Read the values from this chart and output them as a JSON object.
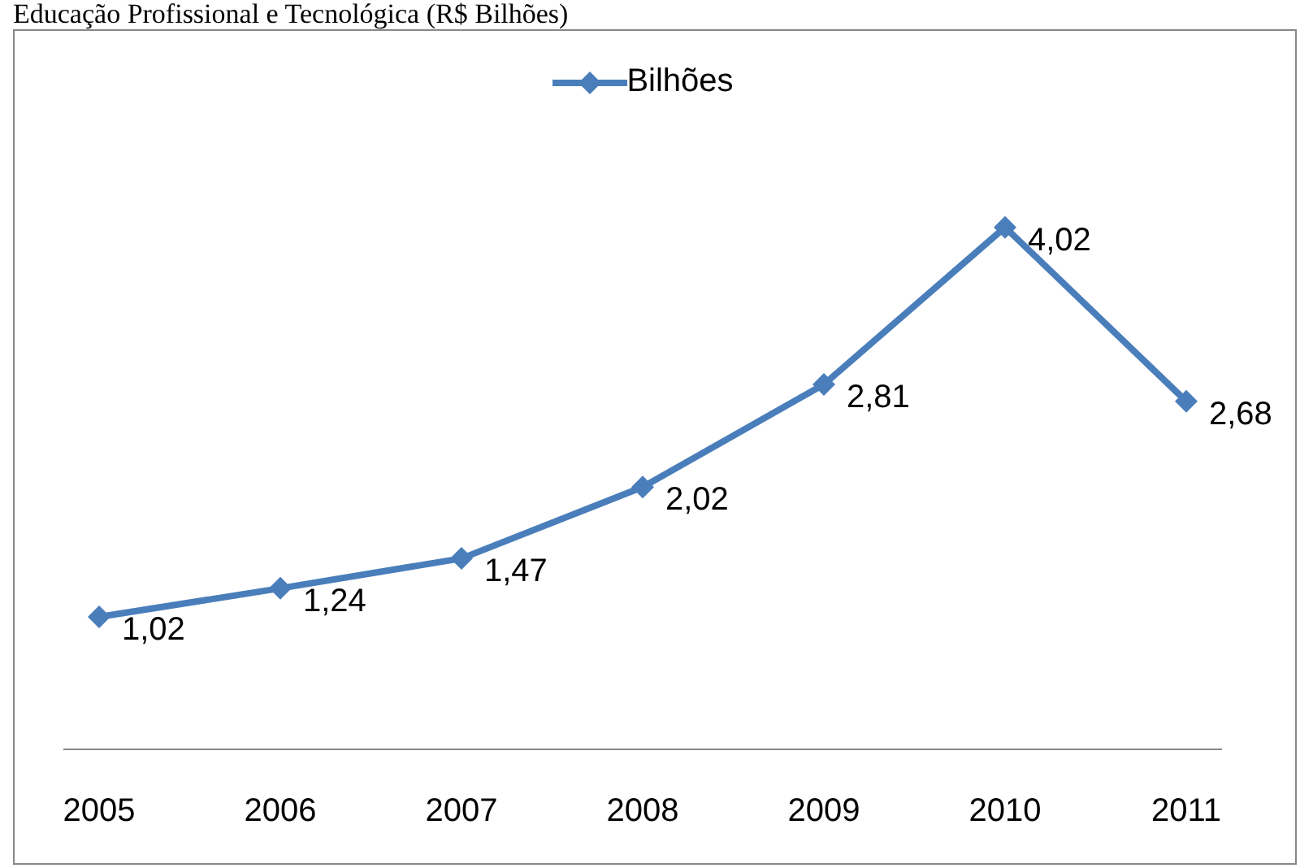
{
  "chart_data": {
    "type": "line",
    "title": "Educação Profissional e Tecnológica (R$ Bilhões)",
    "categories": [
      "2005",
      "2006",
      "2007",
      "2008",
      "2009",
      "2010",
      "2011"
    ],
    "series": [
      {
        "name": "Bilhões",
        "color": "#4a7ebb",
        "values": [
          1.02,
          1.24,
          1.47,
          2.02,
          2.81,
          4.02,
          2.68
        ],
        "value_labels": [
          "1,02",
          "1,24",
          "1,47",
          "2,02",
          "2,81",
          "4,02",
          "2,68"
        ]
      }
    ],
    "legend": "top",
    "marker": "diamond",
    "line_style": "solid"
  }
}
